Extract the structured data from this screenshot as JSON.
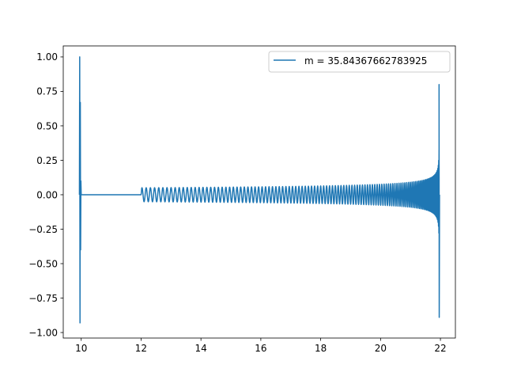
{
  "chart_data": {
    "type": "line",
    "title": "",
    "xlabel": "",
    "ylabel": "",
    "xlim": [
      9.4,
      22.5
    ],
    "ylim": [
      -1.04,
      1.08
    ],
    "x_ticks": [
      10,
      12,
      14,
      16,
      18,
      20,
      22
    ],
    "x_tick_labels": [
      "10",
      "12",
      "14",
      "16",
      "18",
      "20",
      "22"
    ],
    "y_ticks": [
      1.0,
      0.75,
      0.5,
      0.25,
      0.0,
      -0.25,
      -0.5,
      -0.75,
      -1.0
    ],
    "y_tick_labels": [
      "1.00",
      "0.75",
      "0.50",
      "0.25",
      "0.00",
      "−0.25",
      "−0.50",
      "−0.75",
      "−1.00"
    ],
    "grid": false,
    "legend_position": "top-right",
    "series": [
      {
        "name": "m = 35.84367662783925",
        "color": "#1f77b4",
        "description_points": {
          "x": [
            9.94,
            9.95,
            9.96,
            9.97,
            9.98,
            9.99,
            10.0,
            10.01,
            10.05,
            11.98,
            12.0,
            12.02,
            12.5,
            14.0,
            16.0,
            18.0,
            19.0,
            20.0,
            20.5,
            21.0,
            21.3,
            21.5,
            21.7,
            21.8,
            21.85,
            21.9,
            21.93,
            21.95,
            21.96,
            21.97
          ],
          "y": [
            0.0,
            1.0,
            -0.93,
            0.67,
            -0.4,
            0.1,
            0.0,
            0.0,
            0.0,
            0.0,
            0.0,
            0.17,
            0.17,
            0.17,
            0.18,
            0.2,
            0.22,
            0.25,
            0.27,
            0.3,
            0.33,
            0.36,
            0.42,
            0.47,
            0.52,
            0.6,
            0.68,
            0.8,
            -0.89,
            0.0
          ]
        }
      }
    ]
  }
}
